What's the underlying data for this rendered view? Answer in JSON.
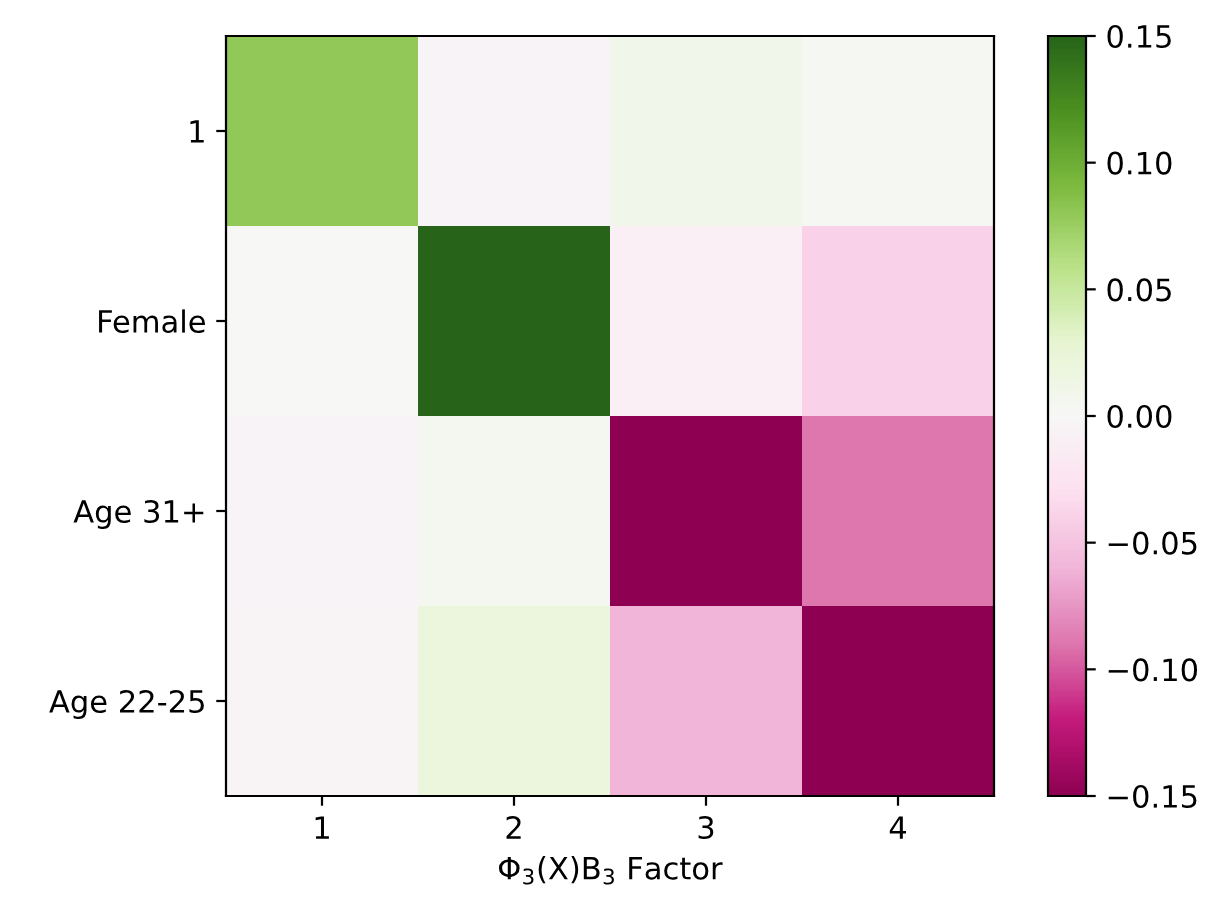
{
  "chart_data": {
    "type": "heatmap",
    "xlabel": "Φ$_{3}$(X)B$_{3}$ Factor",
    "categories": [
      "1",
      "2",
      "3",
      "4"
    ],
    "y_categories": [
      "1",
      "Female",
      "Age 31+",
      "Age 22-25"
    ],
    "cells": [
      [
        0.08,
        -0.005,
        0.01,
        0.003
      ],
      [
        0.0,
        0.15,
        -0.01,
        -0.04
      ],
      [
        -0.005,
        0.005,
        -0.15,
        -0.09
      ],
      [
        -0.004,
        0.02,
        -0.06,
        -0.15
      ]
    ],
    "clim": [
      -0.15,
      0.15
    ],
    "cticks": [
      {
        "value": -0.15,
        "label": "−0.15"
      },
      {
        "value": -0.1,
        "label": "−0.10"
      },
      {
        "value": -0.05,
        "label": "−0.05"
      },
      {
        "value": 0.0,
        "label": "0.00"
      },
      {
        "value": 0.05,
        "label": "0.05"
      },
      {
        "value": 0.1,
        "label": "0.10"
      },
      {
        "value": 0.15,
        "label": "0.15"
      }
    ]
  }
}
